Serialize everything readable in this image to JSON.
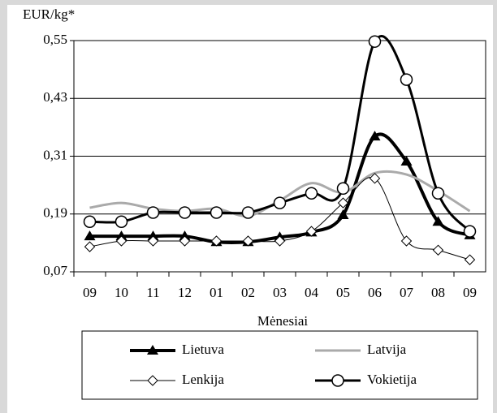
{
  "chart_data": {
    "type": "line",
    "y_label": "EUR/kg*",
    "x_label": "Mėnesiai",
    "categories": [
      "09",
      "10",
      "11",
      "12",
      "01",
      "02",
      "03",
      "04",
      "05",
      "06",
      "07",
      "08",
      "09"
    ],
    "ylim": [
      0.07,
      0.55
    ],
    "yticks": [
      {
        "value": 0.07,
        "label": "0,07"
      },
      {
        "value": 0.19,
        "label": "0,19"
      },
      {
        "value": 0.31,
        "label": "0,31"
      },
      {
        "value": 0.43,
        "label": "0,43"
      },
      {
        "value": 0.55,
        "label": "0,55"
      }
    ],
    "grid": true,
    "series": [
      {
        "name": "Lietuva",
        "color": "#000000",
        "width": 4,
        "marker": "triangle",
        "values": [
          0.144,
          0.144,
          0.144,
          0.144,
          0.132,
          0.132,
          0.142,
          0.152,
          0.188,
          0.351,
          0.299,
          0.174,
          0.146
        ]
      },
      {
        "name": "Latvija",
        "color": "#aaaaaa",
        "width": 3,
        "marker": "none",
        "values": [
          0.203,
          0.213,
          0.201,
          0.196,
          0.201,
          0.186,
          0.218,
          0.254,
          0.235,
          0.275,
          0.272,
          0.238,
          0.196
        ]
      },
      {
        "name": "Lenkija",
        "color": "#000000",
        "width": 1,
        "marker": "diamond",
        "values": [
          0.122,
          0.134,
          0.134,
          0.134,
          0.134,
          0.134,
          0.134,
          0.154,
          0.213,
          0.264,
          0.134,
          0.115,
          0.095
        ]
      },
      {
        "name": "Vokietija",
        "color": "#000000",
        "width": 3,
        "marker": "circle",
        "values": [
          0.174,
          0.174,
          0.193,
          0.193,
          0.193,
          0.193,
          0.213,
          0.233,
          0.243,
          0.548,
          0.469,
          0.233,
          0.154
        ]
      }
    ]
  }
}
